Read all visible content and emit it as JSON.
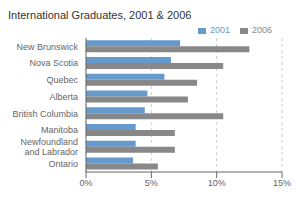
{
  "chart_data": {
    "type": "bar",
    "orientation": "horizontal",
    "title": "International Graduates, 2001 & 2006",
    "categories": [
      "New Brunswick",
      "Nova Scotia",
      "Quebec",
      "Alberta",
      "British Columbia",
      "Manitoba",
      "Newfoundland\nand Labrador",
      "Ontario"
    ],
    "series": [
      {
        "name": "2001",
        "color": "#6699cc",
        "values": [
          7.2,
          6.5,
          6.0,
          4.7,
          4.5,
          3.8,
          3.8,
          3.6
        ]
      },
      {
        "name": "2006",
        "color": "#888888",
        "values": [
          12.5,
          10.5,
          8.5,
          7.8,
          10.5,
          6.8,
          6.8,
          5.5
        ]
      }
    ],
    "xlim": [
      0,
      15
    ],
    "xticks": [
      {
        "value": 0,
        "label": "0%"
      },
      {
        "value": 5,
        "label": "5%"
      },
      {
        "value": 10,
        "label": "10%"
      },
      {
        "value": 15,
        "label": "15%"
      }
    ],
    "grid": true,
    "legend": "upper right"
  }
}
